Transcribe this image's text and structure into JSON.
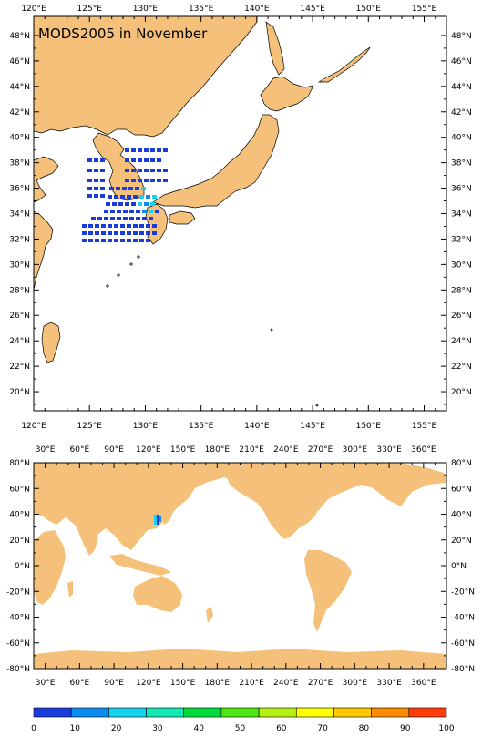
{
  "regional_map": {
    "title": "MODS2005 in November",
    "lon_ticks": [
      "120°E",
      "125°E",
      "130°E",
      "135°E",
      "140°E",
      "145°E",
      "150°E",
      "155°E"
    ],
    "lat_ticks": [
      "48°N",
      "46°N",
      "44°N",
      "42°N",
      "40°N",
      "38°N",
      "36°N",
      "34°N",
      "32°N",
      "30°N",
      "28°N",
      "26°N",
      "24°N",
      "22°N",
      "20°N"
    ],
    "lon_range": [
      120,
      157
    ],
    "lat_range": [
      18.5,
      49.5
    ]
  },
  "global_map": {
    "lon_ticks": [
      "30°E",
      "60°E",
      "90°E",
      "120°E",
      "150°E",
      "180°E",
      "210°E",
      "240°E",
      "270°E",
      "300°E",
      "330°E",
      "360°E"
    ],
    "lat_ticks": [
      "80°N",
      "60°N",
      "40°N",
      "20°N",
      "0°N",
      "-20°N",
      "-40°N",
      "-60°N",
      "-80°N"
    ],
    "lon_range": [
      20,
      380
    ],
    "lat_range": [
      -80,
      80
    ]
  },
  "colorbar": {
    "labels": [
      "0",
      "10",
      "20",
      "30",
      "40",
      "50",
      "60",
      "70",
      "80",
      "90",
      "100"
    ],
    "colors": [
      "#1a3cdc",
      "#0a8cf0",
      "#14d2f0",
      "#14e6b4",
      "#00dc3c",
      "#50e614",
      "#b4f014",
      "#ffff00",
      "#ffc800",
      "#ff8c00",
      "#ff3c0a"
    ]
  },
  "colors": {
    "land": "#f5c07a",
    "obs_low": "#1a3cdc",
    "obs_mid": "#0a8cf0",
    "obs_high": "#14d2f0"
  }
}
